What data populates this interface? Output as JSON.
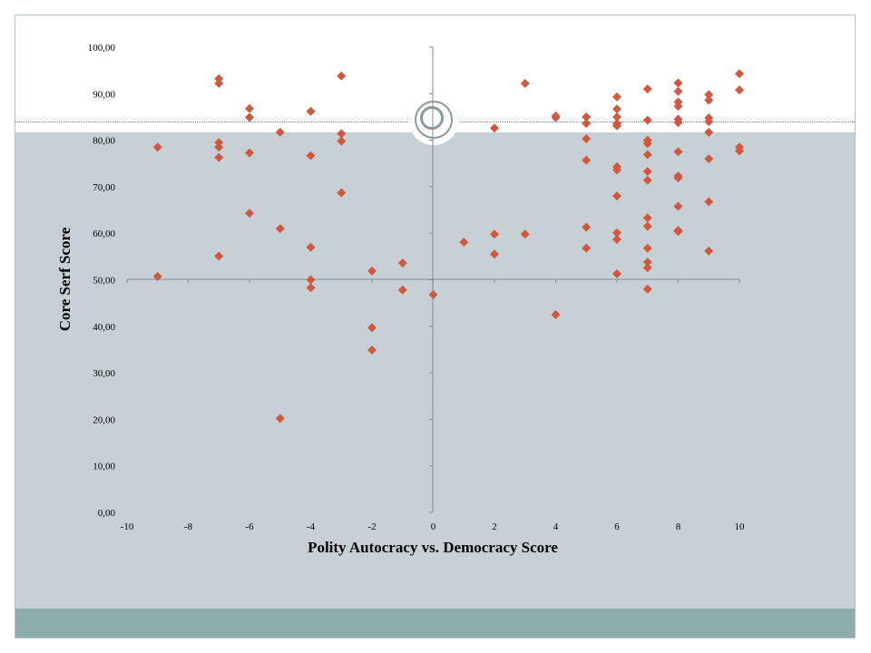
{
  "slide": {
    "colors": {
      "background": "#ffffff",
      "panel": "#c7d0d5",
      "footer_band": "#8cadaa",
      "ornament": "#8a9aa0",
      "marker": "#d0583e"
    }
  },
  "chart_data": {
    "type": "scatter",
    "title": "",
    "xlabel": "Polity Autocracy vs. Democracy Score",
    "ylabel": "Core Serf Score",
    "xlim": [
      -10,
      10
    ],
    "ylim": [
      0,
      100
    ],
    "x_ticks": [
      "-10",
      "-8",
      "-6",
      "-4",
      "-2",
      "0",
      "2",
      "4",
      "6",
      "8",
      "10"
    ],
    "y_ticks": [
      "0,00",
      "10,00",
      "20,00",
      "30,00",
      "40,00",
      "50,00",
      "60,00",
      "70,00",
      "80,00",
      "90,00",
      "100,00"
    ],
    "grid": false,
    "legend": "none",
    "marker": "diamond",
    "series": [
      {
        "color": "#d0583e",
        "points": [
          [
            -9,
            78.5
          ],
          [
            -9,
            50.7
          ],
          [
            -7,
            93.2
          ],
          [
            -7,
            92.2
          ],
          [
            -7,
            79.5
          ],
          [
            -7,
            78.5
          ],
          [
            -7,
            76.3
          ],
          [
            -7,
            55.1
          ],
          [
            -6,
            86.8
          ],
          [
            -6,
            84.9
          ],
          [
            -6,
            77.3
          ],
          [
            -6,
            64.3
          ],
          [
            -5,
            81.7
          ],
          [
            -5,
            61.0
          ],
          [
            -5,
            20.2
          ],
          [
            -4,
            86.2
          ],
          [
            -4,
            76.7
          ],
          [
            -4,
            57.0
          ],
          [
            -4,
            50.0
          ],
          [
            -4,
            48.3
          ],
          [
            -3,
            93.8
          ],
          [
            -3,
            81.4
          ],
          [
            -3,
            79.8
          ],
          [
            -3,
            68.7
          ],
          [
            -2,
            51.9
          ],
          [
            -2,
            39.7
          ],
          [
            -2,
            34.9
          ],
          [
            -1,
            53.6
          ],
          [
            -1,
            47.8
          ],
          [
            0,
            46.8
          ],
          [
            1,
            58.1
          ],
          [
            2,
            82.6
          ],
          [
            2,
            59.8
          ],
          [
            2,
            55.5
          ],
          [
            3,
            92.2
          ],
          [
            3,
            59.8
          ],
          [
            4,
            85.2
          ],
          [
            4,
            84.9
          ],
          [
            4,
            42.5
          ],
          [
            5,
            85.0
          ],
          [
            5,
            83.6
          ],
          [
            5,
            80.3
          ],
          [
            5,
            75.7
          ],
          [
            5,
            61.3
          ],
          [
            5,
            56.8
          ],
          [
            6,
            89.3
          ],
          [
            6,
            86.7
          ],
          [
            6,
            85.0
          ],
          [
            6,
            83.6
          ],
          [
            6,
            83.1
          ],
          [
            6,
            74.3
          ],
          [
            6,
            73.6
          ],
          [
            6,
            68.0
          ],
          [
            6,
            60.1
          ],
          [
            6,
            58.7
          ],
          [
            6,
            51.3
          ],
          [
            7,
            91.0
          ],
          [
            7,
            84.3
          ],
          [
            7,
            80.0
          ],
          [
            7,
            79.3
          ],
          [
            7,
            76.9
          ],
          [
            7,
            73.3
          ],
          [
            7,
            71.4
          ],
          [
            7,
            63.3
          ],
          [
            7,
            61.5
          ],
          [
            7,
            56.8
          ],
          [
            7,
            53.8
          ],
          [
            7,
            52.6
          ],
          [
            7,
            48.0
          ],
          [
            8,
            92.3
          ],
          [
            8,
            90.5
          ],
          [
            8,
            88.2
          ],
          [
            8,
            87.3
          ],
          [
            8,
            84.5
          ],
          [
            8,
            83.8
          ],
          [
            8,
            77.5
          ],
          [
            8,
            72.3
          ],
          [
            8,
            71.9
          ],
          [
            8,
            65.8
          ],
          [
            8,
            60.6
          ],
          [
            8,
            60.4
          ],
          [
            9,
            89.8
          ],
          [
            9,
            88.6
          ],
          [
            9,
            84.8
          ],
          [
            9,
            84.0
          ],
          [
            9,
            81.7
          ],
          [
            9,
            76.0
          ],
          [
            9,
            66.8
          ],
          [
            9,
            56.2
          ],
          [
            10,
            94.3
          ],
          [
            10,
            90.8
          ],
          [
            10,
            78.5
          ],
          [
            10,
            77.7
          ]
        ]
      }
    ]
  }
}
